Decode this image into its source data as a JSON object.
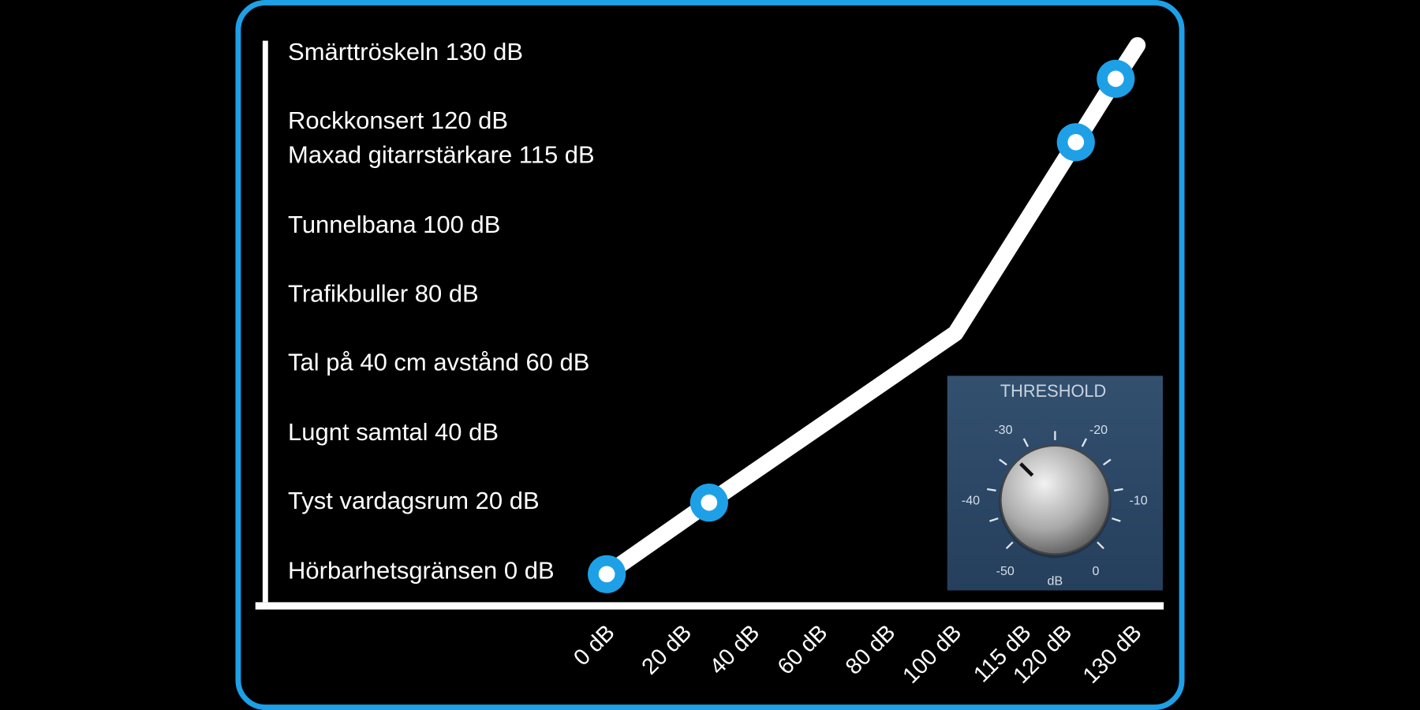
{
  "levels": [
    "Smärttröskeln 130 dB",
    "Rockkonsert 120 dB",
    "Maxad gitarrstärkare 115 dB",
    "Tunnelbana 100 dB",
    "Trafikbuller 80 dB",
    "Tal på 40 cm avstånd 60 dB",
    "Lugnt samtal 40 dB",
    "Tyst vardagsrum 20 dB",
    "Hörbarhetsgränsen 0 dB"
  ],
  "x_labels": [
    "0 dB",
    "20 dB",
    "40 dB",
    "60 dB",
    "80 dB",
    "100 dB",
    "115 dB",
    "120 dB",
    "130 dB"
  ],
  "knob": {
    "title": "THRESHOLD",
    "scale": [
      "-30",
      "-20",
      "-40",
      "-10",
      "-50",
      "0"
    ],
    "unit": "dB"
  }
}
